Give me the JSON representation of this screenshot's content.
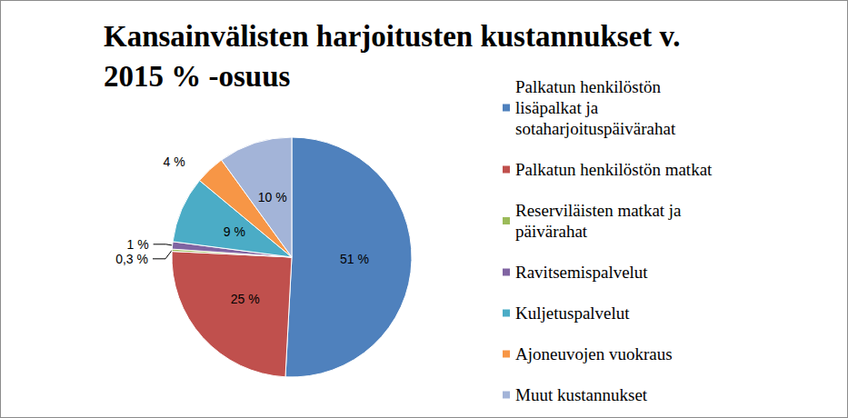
{
  "chart_data": {
    "type": "pie",
    "title": "Kansainvälisten harjoitusten kustannukset v. 2015 % -osuus",
    "categories": [
      "Palkatun henkilöstön lisäpalkat ja sotaharjoituspäivärahat",
      "Palkatun henkilöstön matkat",
      "Reserviläisten matkat ja päivärahat",
      "Ravitsemispalvelut",
      "Kuljetuspalvelut",
      "Ajoneuvojen vuokraus",
      "Muut kustannukset"
    ],
    "values": [
      51,
      25,
      0.3,
      1,
      9,
      4,
      10
    ],
    "value_labels": [
      "51 %",
      "25 %",
      "0,3 %",
      "1 %",
      "9 %",
      "4 %",
      "10 %"
    ],
    "colors": [
      "#4f81bd",
      "#c0504d",
      "#9bbb59",
      "#8064a2",
      "#4bacc6",
      "#f79646",
      "#a3b4d8"
    ],
    "legend": "right",
    "data_labels": true
  }
}
